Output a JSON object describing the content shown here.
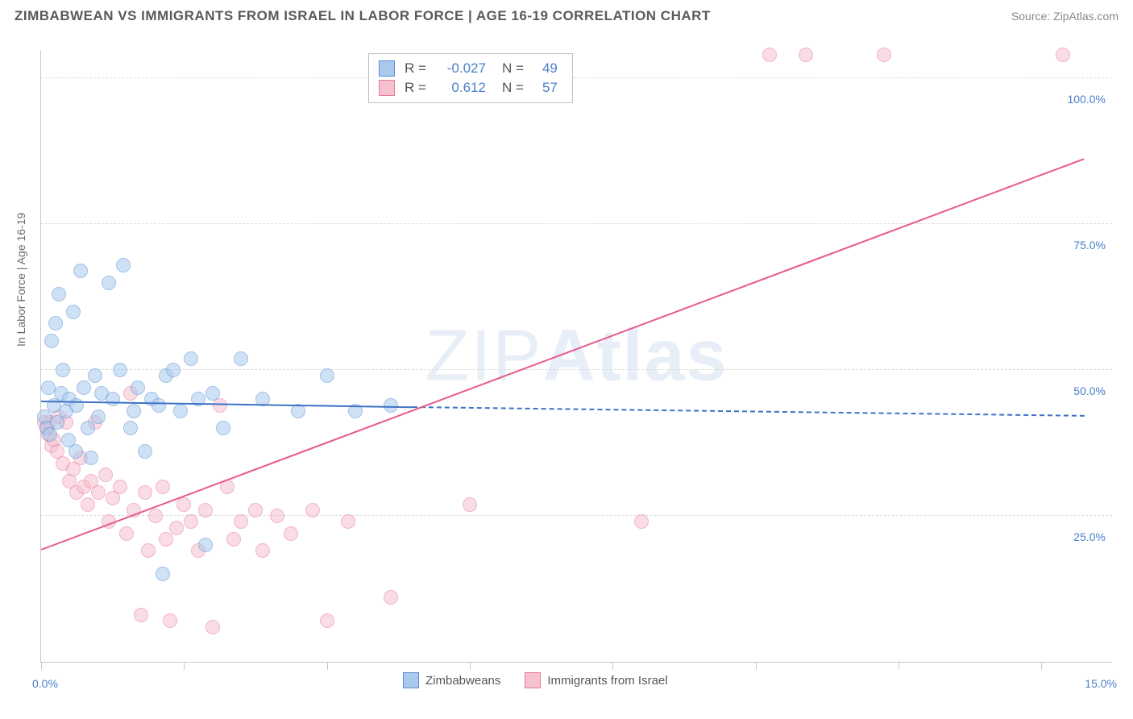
{
  "header": {
    "title": "ZIMBABWEAN VS IMMIGRANTS FROM ISRAEL IN LABOR FORCE | AGE 16-19 CORRELATION CHART",
    "source": "Source: ZipAtlas.com"
  },
  "chart": {
    "type": "scatter",
    "y_title": "In Labor Force | Age 16-19",
    "background_color": "#ffffff",
    "grid_color": "#dcdcdc",
    "axis_color": "#c8c8c8",
    "label_color": "#4a7fc9",
    "label_fontsize": 14,
    "xlim": [
      0,
      15
    ],
    "ylim": [
      0,
      105
    ],
    "x_ticks": [
      0,
      2,
      4,
      6,
      8,
      10,
      12,
      14
    ],
    "x_tick_labels": {
      "0": "0.0%",
      "15": "15.0%"
    },
    "y_gridlines": [
      25,
      50,
      75,
      100
    ],
    "y_tick_labels": {
      "25": "25.0%",
      "50": "50.0%",
      "75": "75.0%",
      "100": "100.0%"
    },
    "marker_radius": 9,
    "marker_opacity": 0.55,
    "series": {
      "zimbabweans": {
        "label": "Zimbabweans",
        "fill": "#a9c9ed",
        "stroke": "#5b8fd1",
        "line_color": "#3d73c4",
        "trend": {
          "x1": 0,
          "y1": 44.5,
          "x2": 5.2,
          "y2": 43.5,
          "dash_to_x": 14.6,
          "dash_to_y": 42.0
        },
        "R": "-0.027",
        "N": "49",
        "points": [
          [
            0.05,
            42
          ],
          [
            0.08,
            40
          ],
          [
            0.1,
            47
          ],
          [
            0.12,
            39
          ],
          [
            0.15,
            55
          ],
          [
            0.18,
            44
          ],
          [
            0.2,
            58
          ],
          [
            0.22,
            41
          ],
          [
            0.25,
            63
          ],
          [
            0.28,
            46
          ],
          [
            0.3,
            50
          ],
          [
            0.35,
            43
          ],
          [
            0.38,
            38
          ],
          [
            0.4,
            45
          ],
          [
            0.45,
            60
          ],
          [
            0.48,
            36
          ],
          [
            0.5,
            44
          ],
          [
            0.55,
            67
          ],
          [
            0.6,
            47
          ],
          [
            0.65,
            40
          ],
          [
            0.7,
            35
          ],
          [
            0.75,
            49
          ],
          [
            0.8,
            42
          ],
          [
            0.85,
            46
          ],
          [
            0.95,
            65
          ],
          [
            1.0,
            45
          ],
          [
            1.1,
            50
          ],
          [
            1.15,
            68
          ],
          [
            1.25,
            40
          ],
          [
            1.3,
            43
          ],
          [
            1.35,
            47
          ],
          [
            1.45,
            36
          ],
          [
            1.55,
            45
          ],
          [
            1.65,
            44
          ],
          [
            1.7,
            15
          ],
          [
            1.75,
            49
          ],
          [
            1.85,
            50
          ],
          [
            1.95,
            43
          ],
          [
            2.1,
            52
          ],
          [
            2.2,
            45
          ],
          [
            2.3,
            20
          ],
          [
            2.4,
            46
          ],
          [
            2.55,
            40
          ],
          [
            2.8,
            52
          ],
          [
            3.1,
            45
          ],
          [
            3.6,
            43
          ],
          [
            4.0,
            49
          ],
          [
            4.4,
            43
          ],
          [
            4.9,
            44
          ]
        ]
      },
      "israel": {
        "label": "Immigrants from Israel",
        "fill": "#f5c1cf",
        "stroke": "#e77a9b",
        "line_color": "#e95a8a",
        "trend": {
          "x1": 0,
          "y1": 19,
          "x2": 14.6,
          "y2": 86
        },
        "R": "0.612",
        "N": "57",
        "points": [
          [
            0.05,
            41
          ],
          [
            0.08,
            40
          ],
          [
            0.1,
            39
          ],
          [
            0.12,
            41
          ],
          [
            0.15,
            37
          ],
          [
            0.18,
            38
          ],
          [
            0.22,
            36
          ],
          [
            0.25,
            42
          ],
          [
            0.3,
            34
          ],
          [
            0.35,
            41
          ],
          [
            0.4,
            31
          ],
          [
            0.45,
            33
          ],
          [
            0.5,
            29
          ],
          [
            0.55,
            35
          ],
          [
            0.6,
            30
          ],
          [
            0.65,
            27
          ],
          [
            0.7,
            31
          ],
          [
            0.75,
            41
          ],
          [
            0.8,
            29
          ],
          [
            0.9,
            32
          ],
          [
            0.95,
            24
          ],
          [
            1.0,
            28
          ],
          [
            1.1,
            30
          ],
          [
            1.2,
            22
          ],
          [
            1.25,
            46
          ],
          [
            1.3,
            26
          ],
          [
            1.4,
            8
          ],
          [
            1.45,
            29
          ],
          [
            1.5,
            19
          ],
          [
            1.6,
            25
          ],
          [
            1.7,
            30
          ],
          [
            1.75,
            21
          ],
          [
            1.8,
            7
          ],
          [
            1.9,
            23
          ],
          [
            2.0,
            27
          ],
          [
            2.1,
            24
          ],
          [
            2.2,
            19
          ],
          [
            2.3,
            26
          ],
          [
            2.4,
            6
          ],
          [
            2.5,
            44
          ],
          [
            2.6,
            30
          ],
          [
            2.7,
            21
          ],
          [
            2.8,
            24
          ],
          [
            3.0,
            26
          ],
          [
            3.1,
            19
          ],
          [
            3.3,
            25
          ],
          [
            3.5,
            22
          ],
          [
            3.8,
            26
          ],
          [
            4.0,
            7
          ],
          [
            4.3,
            24
          ],
          [
            4.9,
            11
          ],
          [
            6.0,
            27
          ],
          [
            8.4,
            24
          ],
          [
            10.2,
            104
          ],
          [
            10.7,
            104
          ],
          [
            11.8,
            104
          ],
          [
            14.3,
            104
          ]
        ]
      }
    }
  },
  "stats_box": {
    "rows": [
      {
        "swatch": "zimbabweans",
        "R_label": "R =",
        "R": "-0.027",
        "N_label": "N =",
        "N": "49"
      },
      {
        "swatch": "israel",
        "R_label": "R =",
        "R": "0.612",
        "N_label": "N =",
        "N": "57"
      }
    ]
  },
  "watermark": {
    "light": "ZIP",
    "bold": "Atlas"
  }
}
